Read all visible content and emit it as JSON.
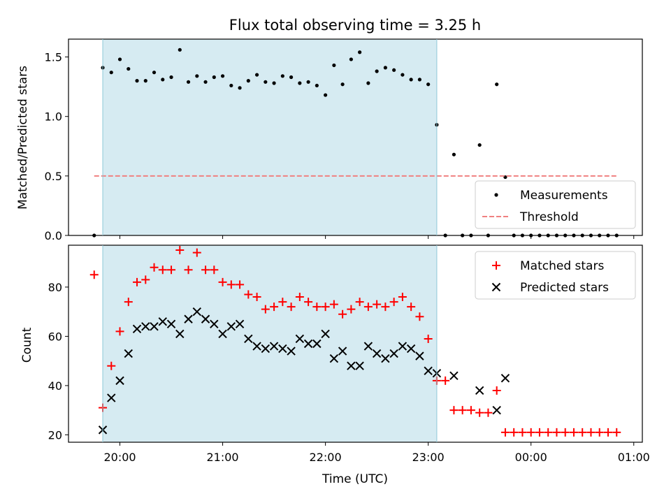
{
  "chart_data": {
    "type": "scatter",
    "title": "Flux total observing time = 3.25 h",
    "xlabel": "Time (UTC)",
    "x_ticks": [
      "20:00",
      "21:00",
      "22:00",
      "23:00",
      "00:00",
      "01:00"
    ],
    "xlim": [
      "19:30",
      "01:05"
    ],
    "shaded_interval": {
      "start": "19:50",
      "end": "23:05",
      "color": "#add8e6"
    },
    "grid": false,
    "panels": [
      {
        "name": "ratio",
        "ylabel": "Matched/Predicted stars",
        "ylim": [
          0,
          1.65
        ],
        "y_ticks": [
          "0.0",
          "0.5",
          "1.0",
          "1.5"
        ],
        "legend": "lower-right",
        "series": [
          {
            "name": "Measurements",
            "style": "dot",
            "color": "#000000",
            "x": [
              "19:45",
              "19:50",
              "19:55",
              "20:00",
              "20:05",
              "20:10",
              "20:15",
              "20:20",
              "20:25",
              "20:30",
              "20:35",
              "20:40",
              "20:45",
              "20:50",
              "20:55",
              "21:00",
              "21:05",
              "21:10",
              "21:15",
              "21:20",
              "21:25",
              "21:30",
              "21:35",
              "21:40",
              "21:45",
              "21:50",
              "21:55",
              "22:00",
              "22:05",
              "22:10",
              "22:15",
              "22:20",
              "22:25",
              "22:30",
              "22:35",
              "22:40",
              "22:45",
              "22:50",
              "22:55",
              "23:00",
              "23:05",
              "23:10",
              "23:15",
              "23:20",
              "23:25",
              "23:30",
              "23:35",
              "23:40",
              "23:45",
              "23:50",
              "23:55",
              "00:00",
              "00:05",
              "00:10",
              "00:15",
              "00:20",
              "00:25",
              "00:30",
              "00:35",
              "00:40",
              "00:45",
              "00:50"
            ],
            "y": [
              0.0,
              1.41,
              1.37,
              1.48,
              1.4,
              1.3,
              1.3,
              1.37,
              1.31,
              1.33,
              1.56,
              1.29,
              1.34,
              1.29,
              1.33,
              1.34,
              1.26,
              1.24,
              1.3,
              1.35,
              1.29,
              1.28,
              1.34,
              1.33,
              1.28,
              1.29,
              1.26,
              1.18,
              1.43,
              1.27,
              1.48,
              1.54,
              1.28,
              1.38,
              1.41,
              1.39,
              1.35,
              1.31,
              1.31,
              1.27,
              0.93,
              0.0,
              0.68,
              0.0,
              0.0,
              0.76,
              0.0,
              1.27,
              0.49,
              0.0,
              0.0,
              0.0,
              0.0,
              0.0,
              0.0,
              0.0,
              0.0,
              0.0,
              0.0,
              0.0,
              0.0,
              0.0
            ]
          },
          {
            "name": "Threshold",
            "style": "dashed",
            "color": "#f08080",
            "x": [
              "19:45",
              "00:50"
            ],
            "y": [
              0.5,
              0.5
            ]
          }
        ]
      },
      {
        "name": "counts",
        "ylabel": "Count",
        "ylim": [
          17,
          97
        ],
        "y_ticks": [
          "20",
          "40",
          "60",
          "80"
        ],
        "legend": "top-right",
        "series": [
          {
            "name": "Matched stars",
            "style": "plus",
            "color": "#ff0000",
            "x": [
              "19:45",
              "19:50",
              "19:55",
              "20:00",
              "20:05",
              "20:10",
              "20:15",
              "20:20",
              "20:25",
              "20:30",
              "20:35",
              "20:40",
              "20:45",
              "20:50",
              "20:55",
              "21:00",
              "21:05",
              "21:10",
              "21:15",
              "21:20",
              "21:25",
              "21:30",
              "21:35",
              "21:40",
              "21:45",
              "21:50",
              "21:55",
              "22:00",
              "22:05",
              "22:10",
              "22:15",
              "22:20",
              "22:25",
              "22:30",
              "22:35",
              "22:40",
              "22:45",
              "22:50",
              "22:55",
              "23:00",
              "23:05",
              "23:10",
              "23:15",
              "23:20",
              "23:25",
              "23:30",
              "23:35",
              "23:40",
              "23:45",
              "23:50",
              "23:55",
              "00:00",
              "00:05",
              "00:10",
              "00:15",
              "00:20",
              "00:25",
              "00:30",
              "00:35",
              "00:40",
              "00:45",
              "00:50"
            ],
            "y": [
              85,
              31,
              48,
              62,
              74,
              82,
              83,
              88,
              87,
              87,
              95,
              87,
              94,
              87,
              87,
              82,
              81,
              81,
              77,
              76,
              71,
              72,
              74,
              72,
              76,
              74,
              72,
              72,
              73,
              69,
              71,
              74,
              72,
              73,
              72,
              74,
              76,
              72,
              68,
              59,
              42,
              42,
              30,
              30,
              30,
              29,
              29,
              38,
              21,
              21,
              21,
              21,
              21,
              21,
              21,
              21,
              21,
              21,
              21,
              21,
              21,
              21
            ]
          },
          {
            "name": "Predicted stars",
            "style": "x",
            "color": "#000000",
            "x": [
              "19:50",
              "19:55",
              "20:00",
              "20:05",
              "20:10",
              "20:15",
              "20:20",
              "20:25",
              "20:30",
              "20:35",
              "20:40",
              "20:45",
              "20:50",
              "20:55",
              "21:00",
              "21:05",
              "21:10",
              "21:15",
              "21:20",
              "21:25",
              "21:30",
              "21:35",
              "21:40",
              "21:45",
              "21:50",
              "21:55",
              "22:00",
              "22:05",
              "22:10",
              "22:15",
              "22:20",
              "22:25",
              "22:30",
              "22:35",
              "22:40",
              "22:45",
              "22:50",
              "22:55",
              "23:00",
              "23:05",
              "23:15",
              "23:30",
              "23:40",
              "23:45"
            ],
            "y": [
              22,
              35,
              42,
              53,
              63,
              64,
              64,
              66,
              65,
              61,
              67,
              70,
              67,
              65,
              61,
              64,
              65,
              59,
              56,
              55,
              56,
              55,
              54,
              59,
              57,
              57,
              61,
              51,
              54,
              48,
              48,
              56,
              53,
              51,
              53,
              56,
              55,
              52,
              46,
              45,
              44,
              38,
              30,
              43
            ]
          }
        ]
      }
    ]
  }
}
